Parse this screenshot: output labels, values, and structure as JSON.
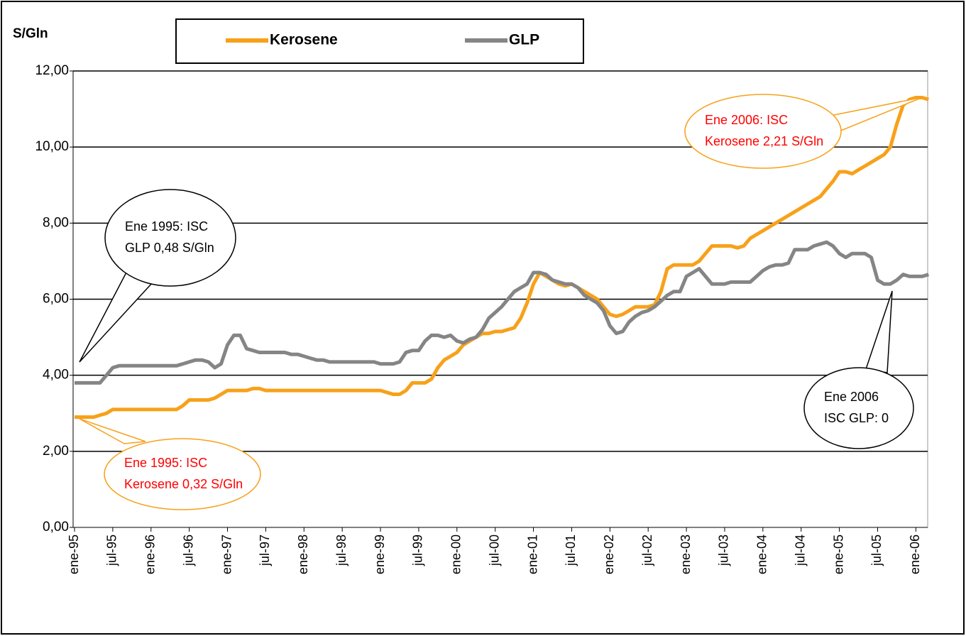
{
  "chart_data": {
    "type": "line",
    "y_label": "S/Gln",
    "categories": [
      "ene-95",
      null,
      null,
      null,
      null,
      null,
      "jul-95",
      null,
      null,
      null,
      null,
      null,
      "ene-96",
      null,
      null,
      null,
      null,
      null,
      "jul-96",
      null,
      null,
      null,
      null,
      null,
      "ene-97",
      null,
      null,
      null,
      null,
      null,
      "jul-97",
      null,
      null,
      null,
      null,
      null,
      "ene-98",
      null,
      null,
      null,
      null,
      null,
      "jul-98",
      null,
      null,
      null,
      null,
      null,
      "ene-99",
      null,
      null,
      null,
      null,
      null,
      "jul-99",
      null,
      null,
      null,
      null,
      null,
      "ene-00",
      null,
      null,
      null,
      null,
      null,
      "jul-00",
      null,
      null,
      null,
      null,
      null,
      "ene-01",
      null,
      null,
      null,
      null,
      null,
      "jul-01",
      null,
      null,
      null,
      null,
      null,
      "ene-02",
      null,
      null,
      null,
      null,
      null,
      "jul-02",
      null,
      null,
      null,
      null,
      null,
      "ene-03",
      null,
      null,
      null,
      null,
      null,
      "jul-03",
      null,
      null,
      null,
      null,
      null,
      "ene-04",
      null,
      null,
      null,
      null,
      null,
      "jul-04",
      null,
      null,
      null,
      null,
      null,
      "ene-05",
      null,
      null,
      null,
      null,
      null,
      "jul-05",
      null,
      null,
      null,
      null,
      null,
      "ene-06",
      null,
      null
    ],
    "series": [
      {
        "name": "Kerosene",
        "color": "#f7a11a",
        "values": [
          2.9,
          2.9,
          2.9,
          2.9,
          2.95,
          3.0,
          3.1,
          3.1,
          3.1,
          3.1,
          3.1,
          3.1,
          3.1,
          3.1,
          3.1,
          3.1,
          3.1,
          3.2,
          3.35,
          3.35,
          3.35,
          3.35,
          3.4,
          3.5,
          3.6,
          3.6,
          3.6,
          3.6,
          3.65,
          3.65,
          3.6,
          3.6,
          3.6,
          3.6,
          3.6,
          3.6,
          3.6,
          3.6,
          3.6,
          3.6,
          3.6,
          3.6,
          3.6,
          3.6,
          3.6,
          3.6,
          3.6,
          3.6,
          3.6,
          3.55,
          3.5,
          3.5,
          3.6,
          3.8,
          3.8,
          3.8,
          3.9,
          4.2,
          4.4,
          4.5,
          4.6,
          4.8,
          4.9,
          5.0,
          5.1,
          5.1,
          5.15,
          5.15,
          5.2,
          5.25,
          5.5,
          5.9,
          6.4,
          6.7,
          6.6,
          6.5,
          6.4,
          6.35,
          6.4,
          6.3,
          6.2,
          6.1,
          6.0,
          5.8,
          5.6,
          5.55,
          5.6,
          5.7,
          5.8,
          5.8,
          5.8,
          5.85,
          6.2,
          6.8,
          6.9,
          6.9,
          6.9,
          6.9,
          7.0,
          7.2,
          7.4,
          7.4,
          7.4,
          7.4,
          7.35,
          7.4,
          7.6,
          7.7,
          7.8,
          7.9,
          8.0,
          8.1,
          8.2,
          8.3,
          8.4,
          8.5,
          8.6,
          8.7,
          8.9,
          9.1,
          9.35,
          9.35,
          9.3,
          9.4,
          9.5,
          9.6,
          9.7,
          9.8,
          10.0,
          10.6,
          11.1,
          11.25,
          11.3,
          11.3,
          11.25
        ]
      },
      {
        "name": "GLP",
        "color": "#858585",
        "values": [
          3.8,
          3.8,
          3.8,
          3.8,
          3.8,
          4.0,
          4.2,
          4.25,
          4.25,
          4.25,
          4.25,
          4.25,
          4.25,
          4.25,
          4.25,
          4.25,
          4.25,
          4.3,
          4.35,
          4.4,
          4.4,
          4.35,
          4.2,
          4.3,
          4.8,
          5.05,
          5.05,
          4.7,
          4.65,
          4.6,
          4.6,
          4.6,
          4.6,
          4.6,
          4.55,
          4.55,
          4.5,
          4.45,
          4.4,
          4.4,
          4.35,
          4.35,
          4.35,
          4.35,
          4.35,
          4.35,
          4.35,
          4.35,
          4.3,
          4.3,
          4.3,
          4.35,
          4.6,
          4.65,
          4.65,
          4.9,
          5.05,
          5.05,
          5.0,
          5.05,
          4.9,
          4.85,
          4.95,
          5.0,
          5.2,
          5.5,
          5.65,
          5.8,
          6.0,
          6.2,
          6.3,
          6.4,
          6.7,
          6.7,
          6.65,
          6.5,
          6.45,
          6.4,
          6.4,
          6.3,
          6.1,
          6.0,
          5.9,
          5.7,
          5.3,
          5.1,
          5.15,
          5.4,
          5.55,
          5.65,
          5.7,
          5.8,
          5.95,
          6.1,
          6.2,
          6.2,
          6.6,
          6.7,
          6.8,
          6.6,
          6.4,
          6.4,
          6.4,
          6.45,
          6.45,
          6.45,
          6.45,
          6.6,
          6.75,
          6.85,
          6.9,
          6.9,
          6.95,
          7.3,
          7.3,
          7.3,
          7.4,
          7.45,
          7.5,
          7.4,
          7.2,
          7.1,
          7.2,
          7.2,
          7.2,
          7.1,
          6.5,
          6.4,
          6.4,
          6.5,
          6.65,
          6.6,
          6.6,
          6.6,
          6.65
        ]
      }
    ],
    "ylim": [
      0,
      12
    ],
    "yticks": [
      {
        "value": 0,
        "label": "0,00"
      },
      {
        "value": 2,
        "label": "2,00"
      },
      {
        "value": 4,
        "label": "4,00"
      },
      {
        "value": 6,
        "label": "6,00"
      },
      {
        "value": 8,
        "label": "8,00"
      },
      {
        "value": 10,
        "label": "10,00"
      },
      {
        "value": 12,
        "label": "12,00"
      }
    ],
    "grid": true,
    "annotations": [
      {
        "lines": [
          "Ene 1995: ISC",
          "GLP 0,48 S/Gln"
        ],
        "color": "#000000",
        "fill": "#ffffff",
        "stroke": "#000000"
      },
      {
        "lines": [
          "Ene 1995: ISC",
          "Kerosene 0,32 S/Gln"
        ],
        "color": "#ff0000",
        "fill": "#ffffff",
        "stroke": "#f7a11a"
      },
      {
        "lines": [
          "Ene 2006: ISC",
          "Kerosene 2,21 S/Gln"
        ],
        "color": "#ff0000",
        "fill": "#ffffff",
        "stroke": "#f7a11a"
      },
      {
        "lines": [
          "Ene 2006",
          "ISC GLP: 0"
        ],
        "color": "#000000",
        "fill": "#ffffff",
        "stroke": "#000000"
      }
    ]
  }
}
